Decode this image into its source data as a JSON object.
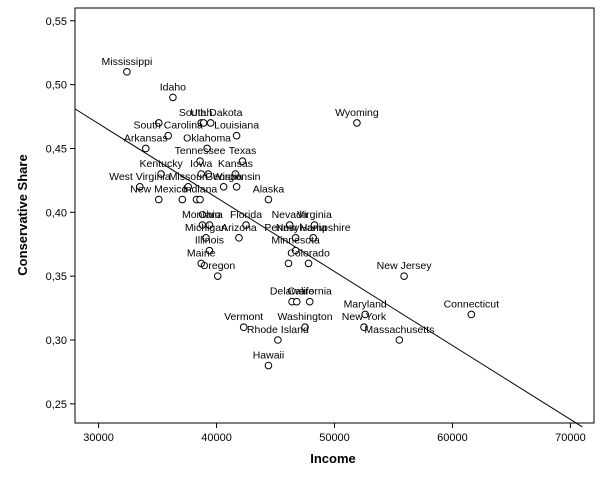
{
  "chart_data": {
    "type": "scatter",
    "xlabel": "Income",
    "ylabel": "Conservative Share",
    "xlim": [
      28000,
      72000
    ],
    "ylim": [
      0.235,
      0.56
    ],
    "x_ticks": [
      30000,
      40000,
      50000,
      60000,
      70000
    ],
    "x_tick_labels": [
      "30000",
      "40000",
      "50000",
      "60000",
      "70000"
    ],
    "y_ticks": [
      0.25,
      0.3,
      0.35,
      0.4,
      0.45,
      0.5,
      0.55
    ],
    "y_tick_labels": [
      "0,25",
      "0,30",
      "0,35",
      "0,40",
      "0,45",
      "0,50",
      "0,55"
    ],
    "grid": false,
    "marker_color": "#000000",
    "fit_line": {
      "x": [
        28000,
        71000
      ],
      "y": [
        0.481,
        0.232
      ]
    },
    "points": [
      {
        "label": "Mississippi",
        "x": 32400,
        "y": 0.51
      },
      {
        "label": "Idaho",
        "x": 36300,
        "y": 0.49
      },
      {
        "label": "Utah",
        "x": 38700,
        "y": 0.47
      },
      {
        "label": "South Dakota",
        "x": 39500,
        "y": 0.47
      },
      {
        "label": "",
        "x": 38900,
        "y": 0.47
      },
      {
        "label": "",
        "x": 35100,
        "y": 0.47
      },
      {
        "label": "Louisiana",
        "x": 41700,
        "y": 0.46
      },
      {
        "label": "Wyoming",
        "x": 51900,
        "y": 0.47
      },
      {
        "label": "South Carolina",
        "x": 35900,
        "y": 0.46
      },
      {
        "label": "Arkansas",
        "x": 34000,
        "y": 0.45
      },
      {
        "label": "Oklahoma",
        "x": 39200,
        "y": 0.45
      },
      {
        "label": "Texas",
        "x": 42200,
        "y": 0.44
      },
      {
        "label": "Tennessee",
        "x": 38600,
        "y": 0.44
      },
      {
        "label": "Iowa",
        "x": 38700,
        "y": 0.43
      },
      {
        "label": "",
        "x": 39300,
        "y": 0.43
      },
      {
        "label": "Kansas",
        "x": 41600,
        "y": 0.43
      },
      {
        "label": "Kentucky",
        "x": 35300,
        "y": 0.43
      },
      {
        "label": "West Virginia",
        "x": 33500,
        "y": 0.42
      },
      {
        "label": "Missouri",
        "x": 37600,
        "y": 0.42
      },
      {
        "label": "Georgia",
        "x": 40600,
        "y": 0.42
      },
      {
        "label": "Wisconsin",
        "x": 41700,
        "y": 0.42
      },
      {
        "label": "Alaska",
        "x": 44400,
        "y": 0.41
      },
      {
        "label": "New Mexico",
        "x": 35100,
        "y": 0.41
      },
      {
        "label": "",
        "x": 37100,
        "y": 0.41
      },
      {
        "label": "",
        "x": 38300,
        "y": 0.41
      },
      {
        "label": "Indiana",
        "x": 38600,
        "y": 0.41
      },
      {
        "label": "Montana",
        "x": 38800,
        "y": 0.39
      },
      {
        "label": "Ohio",
        "x": 39400,
        "y": 0.39
      },
      {
        "label": "Florida",
        "x": 42500,
        "y": 0.39
      },
      {
        "label": "Nevada",
        "x": 46200,
        "y": 0.39
      },
      {
        "label": "Virginia",
        "x": 48300,
        "y": 0.39
      },
      {
        "label": "Michigan",
        "x": 39100,
        "y": 0.38
      },
      {
        "label": "Arizona",
        "x": 41900,
        "y": 0.38
      },
      {
        "label": "Pennsylvania",
        "x": 46700,
        "y": 0.38
      },
      {
        "label": "New Hampshire",
        "x": 48200,
        "y": 0.38
      },
      {
        "label": "Minnesota",
        "x": 46700,
        "y": 0.37
      },
      {
        "label": "Illinois",
        "x": 39400,
        "y": 0.37
      },
      {
        "label": "Maine",
        "x": 38700,
        "y": 0.36
      },
      {
        "label": "Colorado",
        "x": 47800,
        "y": 0.36
      },
      {
        "label": "",
        "x": 46100,
        "y": 0.36
      },
      {
        "label": "New Jersey",
        "x": 55900,
        "y": 0.35
      },
      {
        "label": "Oregon",
        "x": 40100,
        "y": 0.35
      },
      {
        "label": "Delaware",
        "x": 46400,
        "y": 0.33
      },
      {
        "label": "",
        "x": 46800,
        "y": 0.33
      },
      {
        "label": "California",
        "x": 47900,
        "y": 0.33
      },
      {
        "label": "Connecticut",
        "x": 61600,
        "y": 0.32
      },
      {
        "label": "Maryland",
        "x": 52600,
        "y": 0.32
      },
      {
        "label": "Washington",
        "x": 47500,
        "y": 0.31
      },
      {
        "label": "Vermont",
        "x": 42300,
        "y": 0.31
      },
      {
        "label": "New York",
        "x": 52500,
        "y": 0.31
      },
      {
        "label": "Rhode Island",
        "x": 45200,
        "y": 0.3
      },
      {
        "label": "Massachusetts",
        "x": 55500,
        "y": 0.3
      },
      {
        "label": "Hawaii",
        "x": 44400,
        "y": 0.28
      }
    ]
  }
}
